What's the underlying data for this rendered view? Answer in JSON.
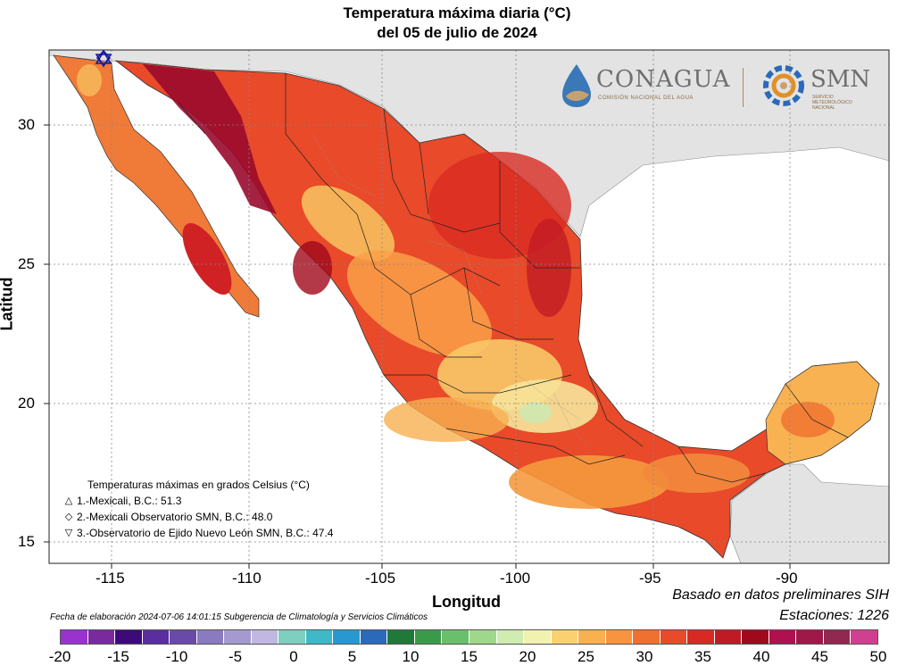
{
  "title": {
    "line1": "Temperatura máxima diaria (°C)",
    "line2": "del 05 de julio de 2024"
  },
  "axes": {
    "x_label": "Longitud",
    "y_label": "Latitud",
    "x_ticks": [
      "-115",
      "-110",
      "-105",
      "-100",
      "-95",
      "-90"
    ],
    "y_ticks": [
      "30",
      "25",
      "20",
      "15"
    ]
  },
  "logos": {
    "conagua_name": "CONAGUA",
    "conagua_sub": "COMISIÓN NACIONAL DEL AGUA",
    "smn_name": "SMN",
    "smn_sub": "SERVICIO METEOROLÓGICO NACIONAL"
  },
  "station_legend": {
    "heading": "Temperaturas máximas en grados Celsius (°C)",
    "items": [
      {
        "symbol": "△",
        "text": "1.-Mexicali, B.C.: 51.3"
      },
      {
        "symbol": "◇",
        "text": "2.-Mexicali Observatorio SMN, B.C.: 48.0"
      },
      {
        "symbol": "▽",
        "text": "3.-Observatorio de Ejido Nuevo León SMN, B.C.: 47.4"
      }
    ]
  },
  "meta": {
    "basis": "Basado en datos preliminares SIH",
    "stations": "Estaciones:  1226",
    "created": "Fecha de elaboración 2024-07-06 14:01:15 Subgerencia de Climatología y Servicios Climáticos"
  },
  "colorbar": {
    "ticks": [
      "-20",
      "-15",
      "-10",
      "-5",
      "0",
      "5",
      "10",
      "15",
      "20",
      "25",
      "30",
      "35",
      "40",
      "45",
      "50"
    ],
    "colors": [
      "#9a32cd",
      "#7a2a9e",
      "#3d0a7a",
      "#5a2e9e",
      "#6a4aa8",
      "#8a7ac0",
      "#a49ad0",
      "#c0b8e0",
      "#7fcfc0",
      "#3fb8c8",
      "#2a98d0",
      "#2a6ab8",
      "#1f7a3a",
      "#3a9a4a",
      "#6abf6a",
      "#9fd88a",
      "#d0ecb0",
      "#f2f2b0",
      "#fad070",
      "#f8b050",
      "#f89440",
      "#f07030",
      "#e84a2a",
      "#d82a22",
      "#c01a24",
      "#a0081c",
      "#b01050",
      "#a01848",
      "#902850",
      "#d04090"
    ]
  }
}
